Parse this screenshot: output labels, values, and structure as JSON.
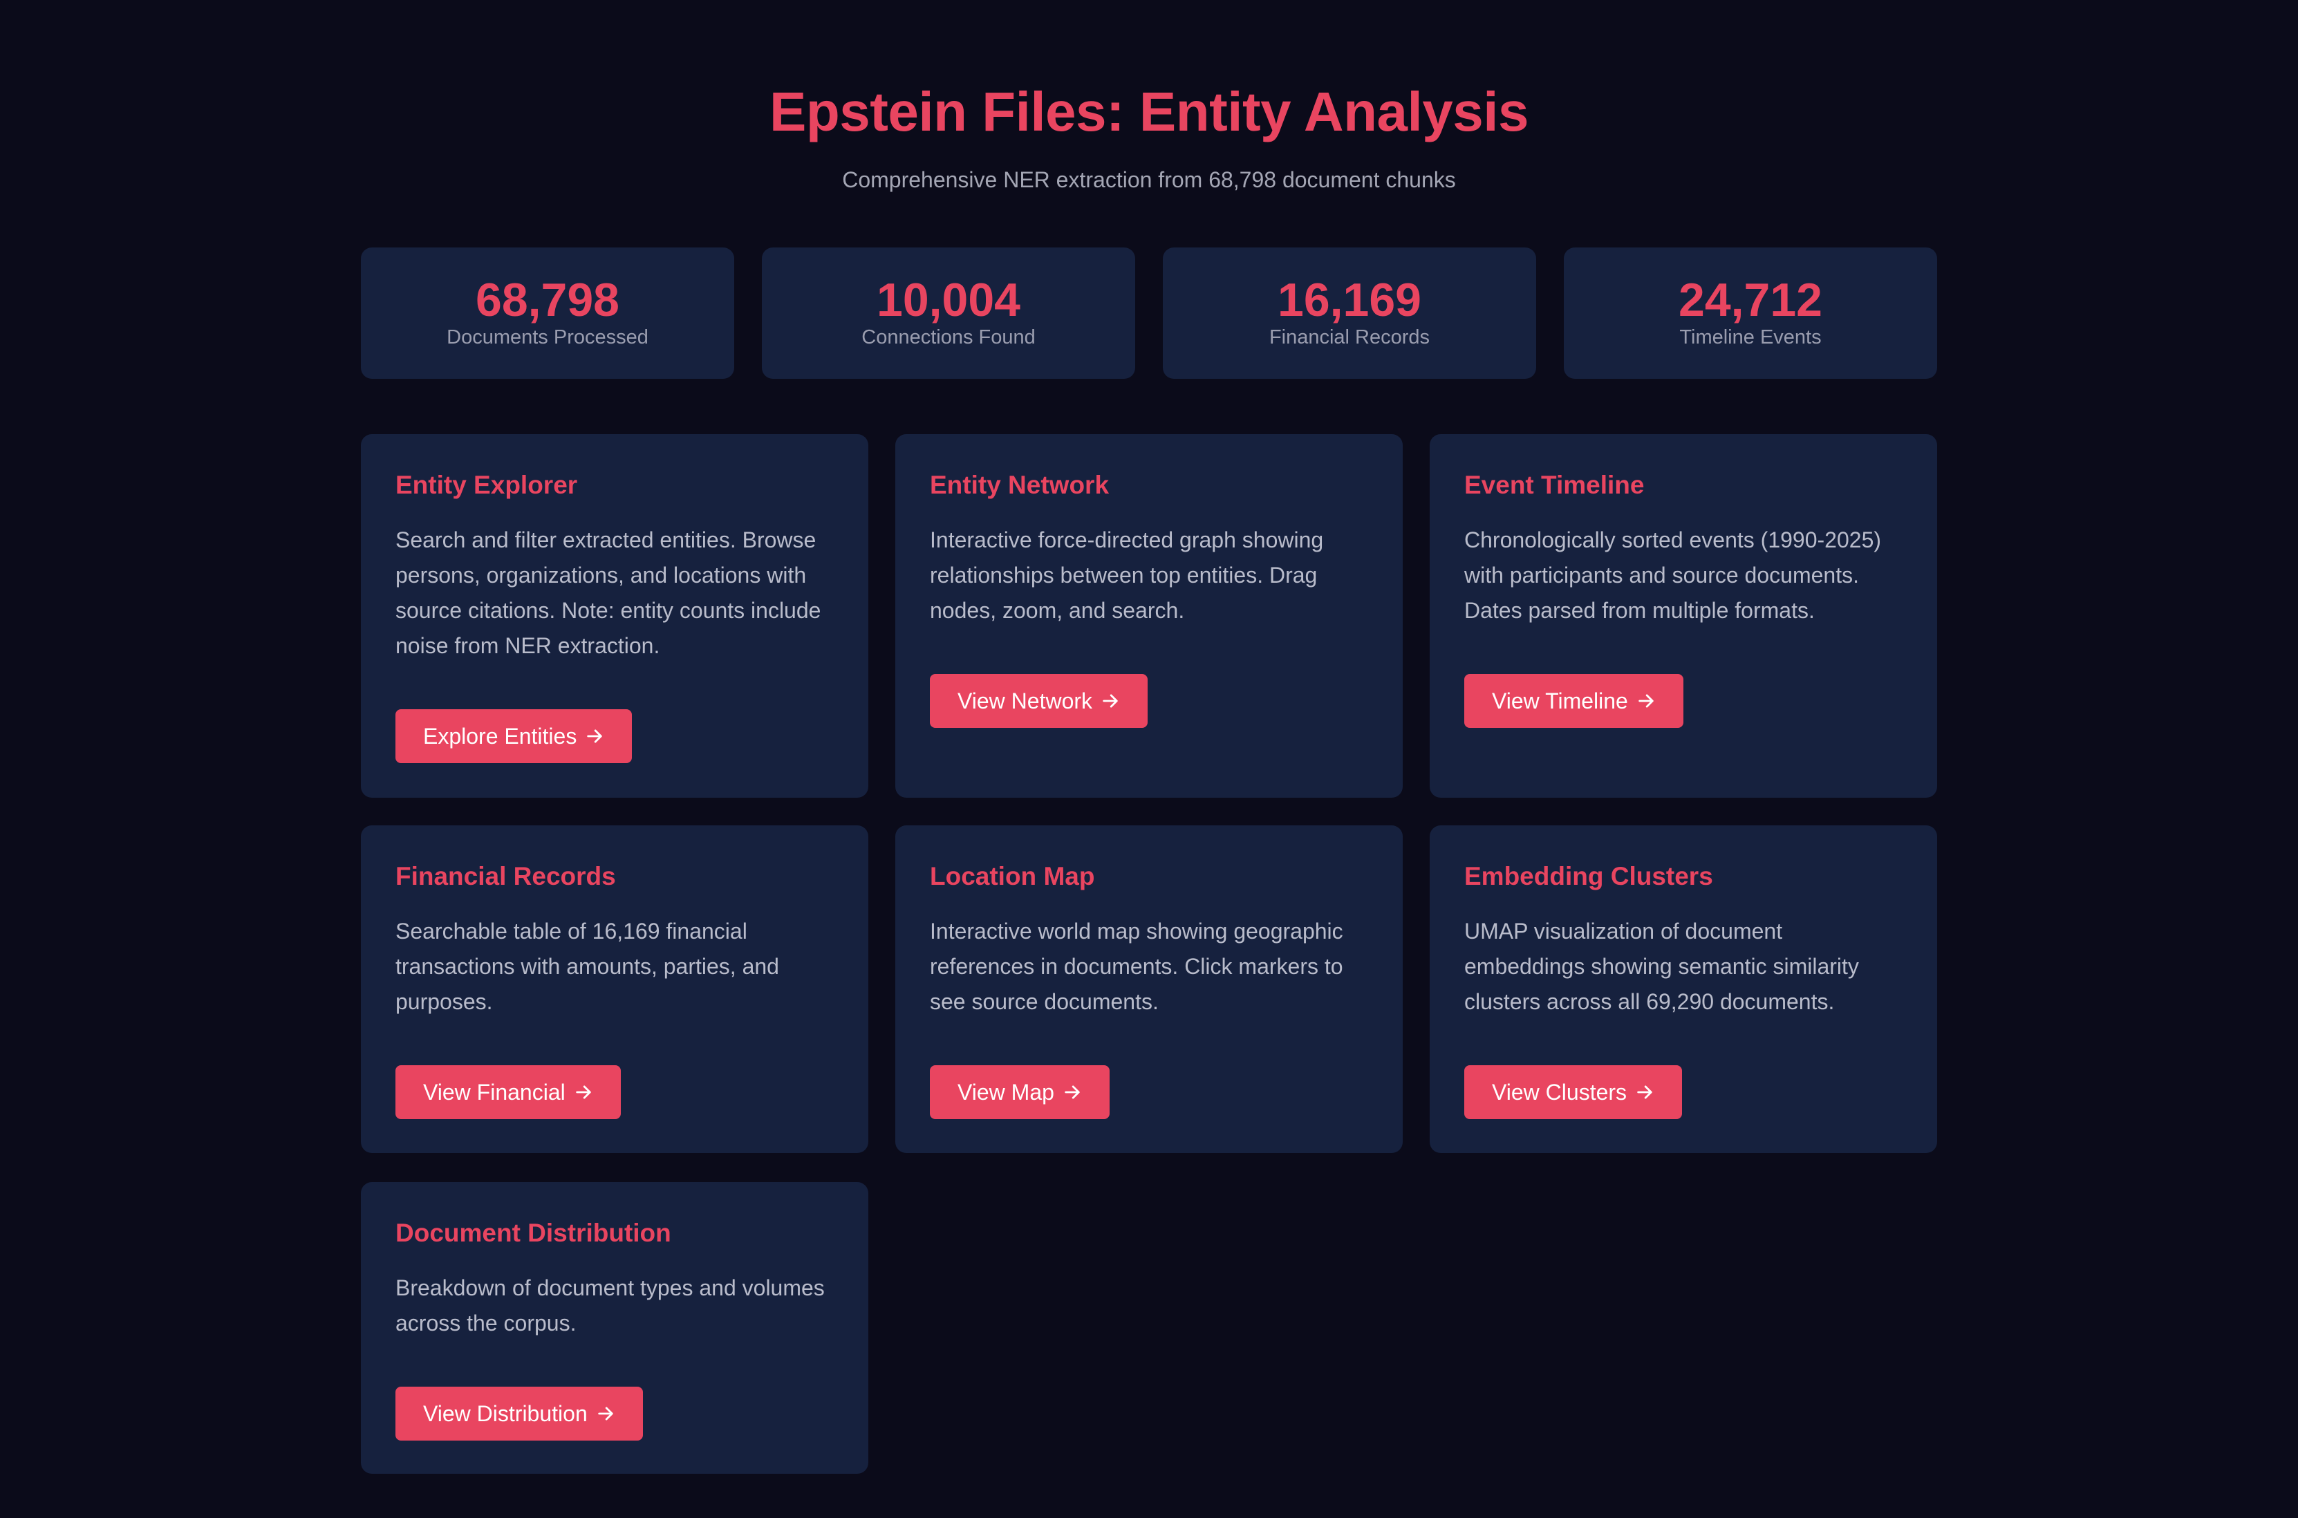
{
  "header": {
    "title": "Epstein Files: Entity Analysis",
    "subtitle": "Comprehensive NER extraction from 68,798 document chunks"
  },
  "stats": [
    {
      "value": "68,798",
      "label": "Documents Processed"
    },
    {
      "value": "10,004",
      "label": "Connections Found"
    },
    {
      "value": "16,169",
      "label": "Financial Records"
    },
    {
      "value": "24,712",
      "label": "Timeline Events"
    }
  ],
  "cards": [
    {
      "title": "Entity Explorer",
      "description": "Search and filter extracted entities. Browse persons, organizations, and locations with source citations. Note: entity counts include noise from NER extraction.",
      "button": "Explore Entities",
      "button_icon": "arrow-right-icon"
    },
    {
      "title": "Entity Network",
      "description": "Interactive force-directed graph showing relationships between top entities. Drag nodes, zoom, and search.",
      "button": "View Network",
      "button_icon": "arrow-right-icon"
    },
    {
      "title": "Event Timeline",
      "description": "Chronologically sorted events (1990-2025) with participants and source documents. Dates parsed from multiple formats.",
      "button": "View Timeline",
      "button_icon": "arrow-right-icon"
    },
    {
      "title": "Financial Records",
      "description": "Searchable table of 16,169 financial transactions with amounts, parties, and purposes.",
      "button": "View Financial",
      "button_icon": "arrow-right-icon"
    },
    {
      "title": "Location Map",
      "description": "Interactive world map showing geographic references in documents. Click markers to see source documents.",
      "button": "View Map",
      "button_icon": "arrow-right-icon"
    },
    {
      "title": "Embedding Clusters",
      "description": "UMAP visualization of document embeddings showing semantic similarity clusters across all 69,290 documents.",
      "button": "View Clusters",
      "button_icon": "arrow-right-icon"
    },
    {
      "title": "Document Distribution",
      "description": "Breakdown of document types and volumes across the corpus.",
      "button": "View Distribution",
      "button_icon": "arrow-right-icon"
    }
  ],
  "colors": {
    "background": "#0b0b1a",
    "card": "#16213e",
    "accent": "#e94560",
    "text_muted": "#b9bccb"
  }
}
